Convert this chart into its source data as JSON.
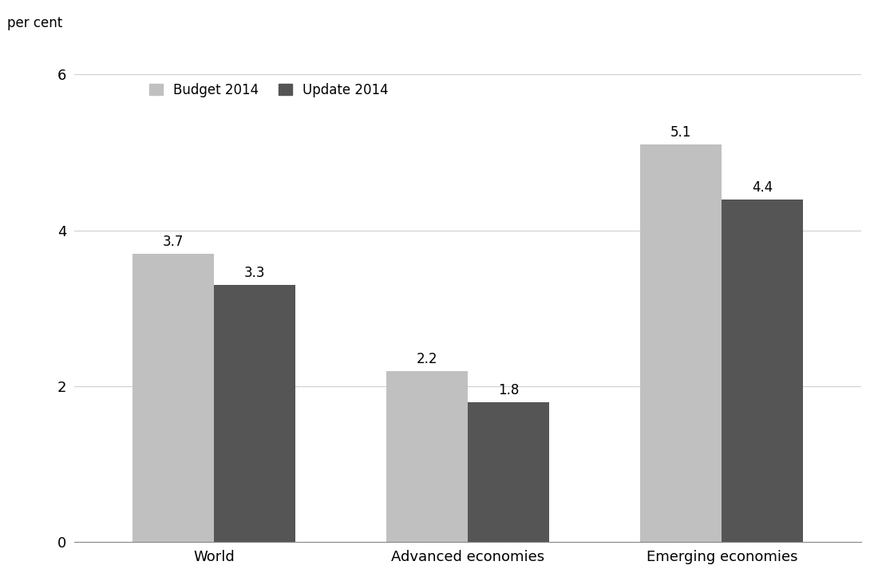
{
  "categories": [
    "World",
    "Advanced economies",
    "Emerging economies"
  ],
  "budget_2014": [
    3.7,
    2.2,
    5.1
  ],
  "update_2014": [
    3.3,
    1.8,
    4.4
  ],
  "budget_color": "#c0c0c0",
  "update_color": "#555555",
  "ylabel": "per cent",
  "ylim": [
    0,
    6.5
  ],
  "yticks": [
    0,
    2,
    4,
    6
  ],
  "bar_width": 0.32,
  "legend_labels": [
    "Budget 2014",
    "Update 2014"
  ],
  "label_fontsize": 12,
  "tick_fontsize": 13,
  "value_fontsize": 12,
  "background_color": "#ffffff",
  "grid_color": "#d0d0d0"
}
